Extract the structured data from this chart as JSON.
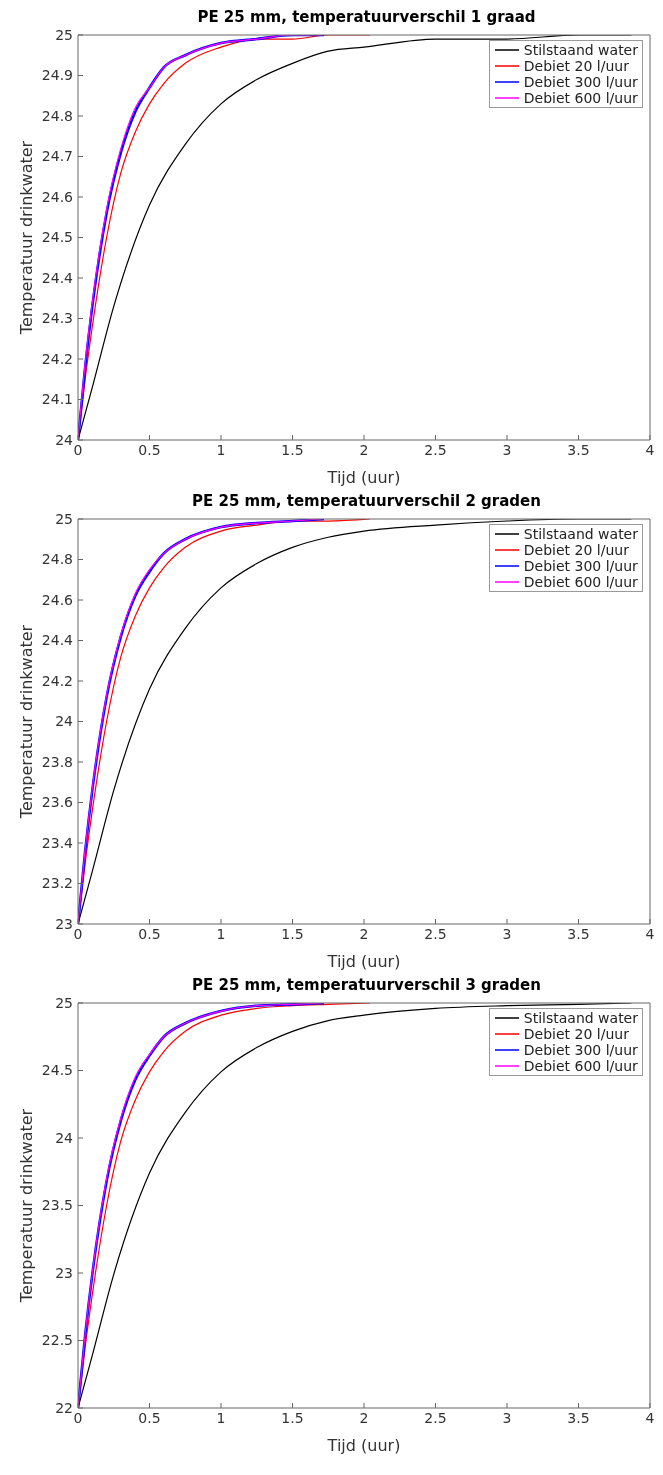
{
  "chart_data": [
    {
      "type": "line",
      "title": "PE 25 mm, temperatuurverschil 1 graad",
      "xlabel": "Tijd (uur)",
      "ylabel": "Temperatuur drinkwater",
      "xlim": [
        0,
        4
      ],
      "xticks": [
        0,
        0.5,
        1,
        1.5,
        2,
        2.5,
        3,
        3.5,
        4
      ],
      "ylim": [
        24,
        25
      ],
      "yticks": [
        24,
        24.1,
        24.2,
        24.3,
        24.4,
        24.5,
        24.6,
        24.7,
        24.8,
        24.9,
        25
      ],
      "legend": "top right",
      "series": [
        {
          "name": "Stilstaand water",
          "color": "#000000",
          "x": [
            0,
            0.1,
            0.25,
            0.5,
            0.75,
            1,
            1.25,
            1.5,
            1.75,
            2,
            2.5,
            3,
            3.5,
            3.87
          ],
          "values": [
            24,
            24.13,
            24.33,
            24.58,
            24.73,
            24.83,
            24.89,
            24.93,
            24.96,
            24.97,
            24.99,
            24.99,
            25,
            25
          ]
        },
        {
          "name": "Debiet 20 l/uur",
          "color": "#ff0000",
          "x": [
            0,
            0.05,
            0.1,
            0.2,
            0.3,
            0.4,
            0.5,
            0.6,
            0.75,
            1,
            1.25,
            1.5,
            1.75,
            2.04
          ],
          "values": [
            24,
            24.15,
            24.28,
            24.5,
            24.66,
            24.76,
            24.83,
            24.88,
            24.93,
            24.97,
            24.99,
            24.99,
            25,
            25
          ]
        },
        {
          "name": "Debiet 300 l/uur",
          "color": "#0000ff",
          "x": [
            0,
            0.05,
            0.1,
            0.2,
            0.3,
            0.4,
            0.5,
            0.6,
            0.75,
            1,
            1.25,
            1.5,
            1.72
          ],
          "values": [
            24,
            24.18,
            24.33,
            24.56,
            24.71,
            24.81,
            24.87,
            24.92,
            24.95,
            24.98,
            24.99,
            25,
            25
          ]
        },
        {
          "name": "Debiet 600 l/uur",
          "color": "#ff00ff",
          "x": [
            0,
            0.05,
            0.1,
            0.2,
            0.3,
            0.4,
            0.5,
            0.6,
            0.75,
            1,
            1.25,
            1.5,
            1.7
          ],
          "values": [
            24,
            24.19,
            24.34,
            24.57,
            24.72,
            24.82,
            24.87,
            24.92,
            24.95,
            24.98,
            24.99,
            25,
            25
          ]
        }
      ]
    },
    {
      "type": "line",
      "title": "PE 25 mm, temperatuurverschil 2 graden",
      "xlabel": "Tijd (uur)",
      "ylabel": "Temperatuur drinkwater",
      "xlim": [
        0,
        4
      ],
      "xticks": [
        0,
        0.5,
        1,
        1.5,
        2,
        2.5,
        3,
        3.5,
        4
      ],
      "ylim": [
        23,
        25
      ],
      "yticks": [
        23,
        23.2,
        23.4,
        23.6,
        23.8,
        24,
        24.2,
        24.4,
        24.6,
        24.8,
        25
      ],
      "legend": "top right",
      "series": [
        {
          "name": "Stilstaand water",
          "color": "#000000",
          "x": [
            0,
            0.1,
            0.25,
            0.5,
            0.75,
            1,
            1.25,
            1.5,
            1.75,
            2,
            2.5,
            3,
            3.5,
            3.87
          ],
          "values": [
            23,
            23.26,
            23.66,
            24.16,
            24.46,
            24.66,
            24.78,
            24.86,
            24.91,
            24.94,
            24.97,
            24.99,
            25,
            25
          ]
        },
        {
          "name": "Debiet 20 l/uur",
          "color": "#ff0000",
          "x": [
            0,
            0.05,
            0.1,
            0.2,
            0.3,
            0.4,
            0.5,
            0.6,
            0.75,
            1,
            1.25,
            1.5,
            1.75,
            2.04
          ],
          "values": [
            23,
            23.3,
            23.56,
            24,
            24.32,
            24.52,
            24.66,
            24.76,
            24.86,
            24.94,
            24.97,
            24.99,
            24.99,
            25
          ]
        },
        {
          "name": "Debiet 300 l/uur",
          "color": "#0000ff",
          "x": [
            0,
            0.05,
            0.1,
            0.2,
            0.3,
            0.4,
            0.5,
            0.6,
            0.75,
            1,
            1.25,
            1.5,
            1.72
          ],
          "values": [
            23,
            23.36,
            23.66,
            24.12,
            24.42,
            24.62,
            24.74,
            24.83,
            24.9,
            24.96,
            24.98,
            24.99,
            25
          ]
        },
        {
          "name": "Debiet 600 l/uur",
          "color": "#ff00ff",
          "x": [
            0,
            0.05,
            0.1,
            0.2,
            0.3,
            0.4,
            0.5,
            0.6,
            0.75,
            1,
            1.25,
            1.5,
            1.7
          ],
          "values": [
            23,
            23.37,
            23.67,
            24.13,
            24.43,
            24.63,
            24.75,
            24.83,
            24.9,
            24.96,
            24.98,
            24.99,
            25
          ]
        }
      ]
    },
    {
      "type": "line",
      "title": "PE 25 mm, temperatuurverschil 3 graden",
      "xlabel": "Tijd (uur)",
      "ylabel": "Temperatuur drinkwater",
      "xlim": [
        0,
        4
      ],
      "xticks": [
        0,
        0.5,
        1,
        1.5,
        2,
        2.5,
        3,
        3.5,
        4
      ],
      "ylim": [
        22,
        25
      ],
      "yticks": [
        22,
        22.5,
        23,
        23.5,
        24,
        24.5,
        25
      ],
      "legend": "top right",
      "series": [
        {
          "name": "Stilstaand water",
          "color": "#000000",
          "x": [
            0,
            0.1,
            0.25,
            0.5,
            0.75,
            1,
            1.25,
            1.5,
            1.75,
            2,
            2.5,
            3,
            3.5,
            3.87
          ],
          "values": [
            22,
            22.39,
            22.99,
            23.74,
            24.19,
            24.49,
            24.67,
            24.79,
            24.87,
            24.91,
            24.96,
            24.98,
            24.99,
            25
          ]
        },
        {
          "name": "Debiet 20 l/uur",
          "color": "#ff0000",
          "x": [
            0,
            0.05,
            0.1,
            0.2,
            0.3,
            0.4,
            0.5,
            0.6,
            0.75,
            1,
            1.25,
            1.5,
            1.75,
            2.04
          ],
          "values": [
            22,
            22.45,
            22.84,
            23.5,
            23.98,
            24.28,
            24.49,
            24.64,
            24.79,
            24.91,
            24.96,
            24.98,
            24.99,
            25
          ]
        },
        {
          "name": "Debiet 300 l/uur",
          "color": "#0000ff",
          "x": [
            0,
            0.05,
            0.1,
            0.2,
            0.3,
            0.4,
            0.5,
            0.6,
            0.75,
            1,
            1.25,
            1.5,
            1.72
          ],
          "values": [
            22,
            22.54,
            22.99,
            23.68,
            24.13,
            24.43,
            24.61,
            24.75,
            24.85,
            24.94,
            24.98,
            24.99,
            25
          ]
        },
        {
          "name": "Debiet 600 l/uur",
          "color": "#ff00ff",
          "x": [
            0,
            0.05,
            0.1,
            0.2,
            0.3,
            0.4,
            0.5,
            0.6,
            0.75,
            1,
            1.25,
            1.5,
            1.7
          ],
          "values": [
            22,
            22.55,
            23,
            23.7,
            24.15,
            24.45,
            24.62,
            24.75,
            24.85,
            24.94,
            24.98,
            24.99,
            25
          ]
        }
      ]
    }
  ]
}
